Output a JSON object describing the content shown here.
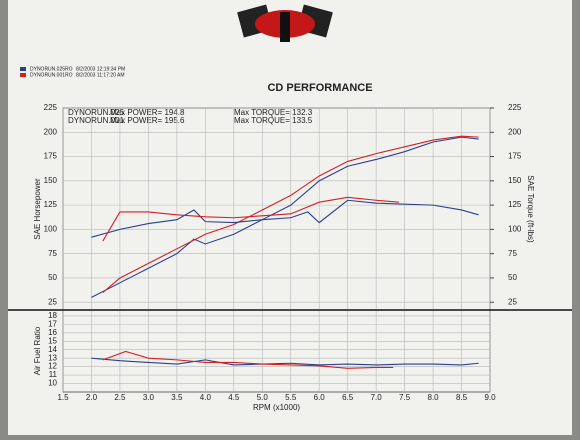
{
  "chart_data": [
    {
      "type": "line",
      "title": "CD PERFORMANCE",
      "runs": [
        {
          "name": "DYNORUN.025RO",
          "color": "#2b3f8f",
          "stamp": "8/2/2003 12:19:34 PM",
          "label": "DYNORUN.025",
          "max_power": "Max POWER= 194.8",
          "max_torque": "Max TORQUE= 132.3"
        },
        {
          "name": "DYNORUN.001RO",
          "color": "#d42020",
          "stamp": "8/2/2003 11:17:20 AM",
          "label": "DYNORUN.001",
          "max_power": "Max POWER= 195.6",
          "max_torque": "Max TORQUE= 133.5"
        }
      ],
      "ylabel": "SAE Horsepower",
      "y2label": "SAE Torque (ft-lbs)",
      "xlim": [
        1.5,
        9.0
      ],
      "ylim": [
        17,
        225
      ],
      "y2lim": [
        17,
        225
      ],
      "yticks": [
        25,
        50,
        75,
        100,
        125,
        150,
        175,
        200,
        225
      ],
      "y2ticks": [
        25,
        50,
        75,
        100,
        125,
        150,
        175,
        200,
        225
      ],
      "grid": true,
      "series": [
        {
          "name": "DYNORUN.025",
          "color": "#2b3f8f",
          "x": [
            2.0,
            2.5,
            3.0,
            3.5,
            3.8,
            4.0,
            4.5,
            5.0,
            5.5,
            6.0,
            6.5,
            7.0,
            7.5,
            8.0,
            8.5,
            8.8
          ],
          "values": [
            30,
            45,
            60,
            75,
            90,
            85,
            95,
            110,
            125,
            150,
            165,
            172,
            180,
            190,
            195,
            193
          ]
        },
        {
          "name": "DYNORUN.001",
          "color": "#d42020",
          "x": [
            2.2,
            2.5,
            3.0,
            3.5,
            4.0,
            4.5,
            5.0,
            5.5,
            6.0,
            6.5,
            7.0,
            7.5,
            8.0,
            8.5,
            8.8
          ],
          "values": [
            35,
            50,
            65,
            80,
            95,
            105,
            120,
            135,
            155,
            170,
            178,
            185,
            192,
            196,
            195
          ]
        },
        {
          "name": "DYNORUN.025",
          "color": "#2b3f8f",
          "axis": "y2",
          "x": [
            2.0,
            2.5,
            3.0,
            3.5,
            3.8,
            4.0,
            4.5,
            5.0,
            5.5,
            5.8,
            6.0,
            6.5,
            7.0,
            7.5,
            8.0,
            8.5,
            8.8
          ],
          "values": [
            92,
            100,
            106,
            110,
            120,
            108,
            107,
            110,
            112,
            118,
            107,
            130,
            127,
            126,
            125,
            120,
            115
          ]
        },
        {
          "name": "DYNORUN.001",
          "color": "#d42020",
          "axis": "y2",
          "x": [
            2.2,
            2.5,
            3.0,
            3.5,
            4.0,
            4.5,
            5.0,
            5.5,
            6.0,
            6.5,
            7.0,
            7.4
          ],
          "values": [
            88,
            118,
            118,
            115,
            113,
            112,
            114,
            116,
            128,
            133,
            130,
            128
          ]
        }
      ]
    },
    {
      "type": "line",
      "ylabel": "Air Fuel Ratio",
      "xlabel": "RPM (x1000)",
      "xlim": [
        1.5,
        9.0
      ],
      "ylim": [
        9,
        18.7
      ],
      "yticks": [
        10,
        11,
        12,
        13,
        14,
        15,
        16,
        17,
        18
      ],
      "xticks": [
        1.5,
        {
          "value": 2,
          "label": "2.0"
        },
        2.5,
        {
          "value": 3,
          "label": "3.0"
        },
        3.5,
        {
          "value": 4,
          "label": "4.0"
        },
        4.5,
        {
          "value": 5,
          "label": "5.0"
        },
        5.5,
        {
          "value": 6,
          "label": "6.0"
        },
        6.5,
        {
          "value": 7,
          "label": "7.0"
        },
        7.5,
        {
          "value": 8,
          "label": "8.0"
        },
        8.5,
        {
          "value": 9,
          "label": "9.0"
        }
      ],
      "grid": true,
      "series": [
        {
          "name": "DYNORUN.025",
          "color": "#2b3f8f",
          "x": [
            2.0,
            2.5,
            3.0,
            3.5,
            4.0,
            4.5,
            5.0,
            5.5,
            6.0,
            6.5,
            7.0,
            7.5,
            8.0,
            8.5,
            8.8
          ],
          "values": [
            13,
            12.7,
            12.5,
            12.3,
            12.8,
            12.2,
            12.3,
            12.4,
            12.2,
            12.3,
            12.2,
            12.3,
            12.3,
            12.2,
            12.4
          ]
        },
        {
          "name": "DYNORUN.001",
          "color": "#d42020",
          "x": [
            2.2,
            2.6,
            3.0,
            3.5,
            4.0,
            4.5,
            5.0,
            5.5,
            6.0,
            6.5,
            7.0,
            7.3
          ],
          "values": [
            12.8,
            13.8,
            13,
            12.8,
            12.5,
            12.5,
            12.3,
            12.2,
            12.1,
            11.8,
            11.9,
            11.9
          ]
        }
      ]
    }
  ]
}
